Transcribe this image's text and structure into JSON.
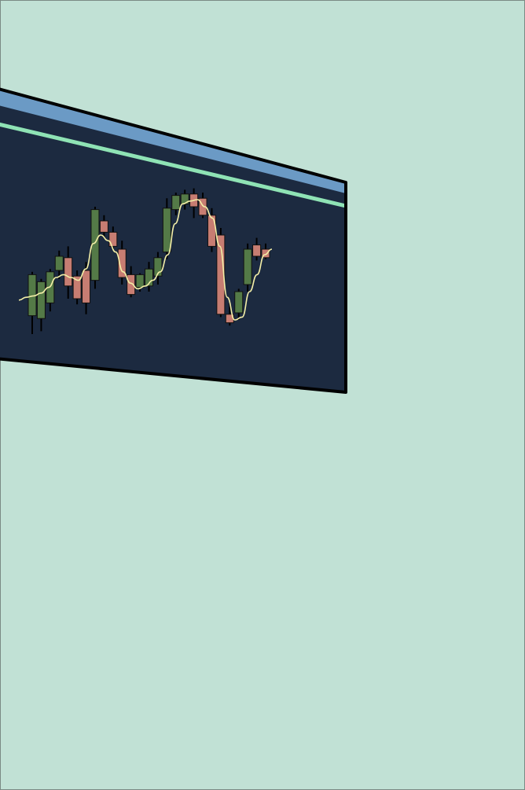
{
  "colors": {
    "background": "#c1e1d5",
    "panel": "#1c2a40",
    "panel_outline": "#000000",
    "header_band": "#6b9ac5",
    "accent_line": "#8fe3b5",
    "bull": "#547a47",
    "bear": "#c77d72",
    "wick": "#000000",
    "moving_average": "#f3eea7"
  },
  "chart_data": {
    "type": "candlestick",
    "title": "",
    "xlabel": "",
    "ylabel": "",
    "grid": false,
    "legend": "none",
    "ylim": [
      0,
      100
    ],
    "candles": [
      {
        "open": 13,
        "high": 44,
        "low": 0,
        "close": 42
      },
      {
        "open": 11,
        "high": 39,
        "low": 2,
        "close": 37
      },
      {
        "open": 22,
        "high": 46,
        "low": 16,
        "close": 44
      },
      {
        "open": 45,
        "high": 59,
        "low": 39,
        "close": 55
      },
      {
        "open": 54,
        "high": 62,
        "low": 25,
        "close": 34
      },
      {
        "open": 41,
        "high": 45,
        "low": 21,
        "close": 25
      },
      {
        "open": 45,
        "high": 51,
        "low": 14,
        "close": 22
      },
      {
        "open": 38,
        "high": 90,
        "low": 32,
        "close": 88
      },
      {
        "open": 80,
        "high": 84,
        "low": 68,
        "close": 72
      },
      {
        "open": 72,
        "high": 76,
        "low": 60,
        "close": 62
      },
      {
        "open": 60,
        "high": 66,
        "low": 35,
        "close": 40
      },
      {
        "open": 42,
        "high": 48,
        "low": 26,
        "close": 28
      },
      {
        "open": 33,
        "high": 43,
        "low": 30,
        "close": 42
      },
      {
        "open": 34,
        "high": 51,
        "low": 30,
        "close": 46
      },
      {
        "open": 41,
        "high": 58,
        "low": 35,
        "close": 54
      },
      {
        "open": 58,
        "high": 96,
        "low": 53,
        "close": 89
      },
      {
        "open": 88,
        "high": 100,
        "low": 84,
        "close": 98
      },
      {
        "open": 92,
        "high": 102,
        "low": 88,
        "close": 99
      },
      {
        "open": 99,
        "high": 103,
        "low": 82,
        "close": 90
      },
      {
        "open": 96,
        "high": 100,
        "low": 82,
        "close": 84
      },
      {
        "open": 84,
        "high": 89,
        "low": 58,
        "close": 62
      },
      {
        "open": 70,
        "high": 75,
        "low": 12,
        "close": 14
      },
      {
        "open": 14,
        "high": 22,
        "low": 6,
        "close": 8
      },
      {
        "open": 15,
        "high": 32,
        "low": 10,
        "close": 30
      },
      {
        "open": 35,
        "high": 64,
        "low": 30,
        "close": 60
      },
      {
        "open": 63,
        "high": 68,
        "low": 52,
        "close": 55
      },
      {
        "open": 60,
        "high": 64,
        "low": 53,
        "close": 54
      }
    ],
    "moving_average": [
      24,
      26,
      27,
      29,
      33,
      40,
      42,
      40,
      38,
      46,
      64,
      70,
      66,
      58,
      44,
      36,
      32,
      34,
      38,
      44,
      56,
      78,
      92,
      94,
      95,
      90,
      82,
      62,
      26,
      10,
      12,
      30,
      42,
      56,
      60
    ]
  }
}
